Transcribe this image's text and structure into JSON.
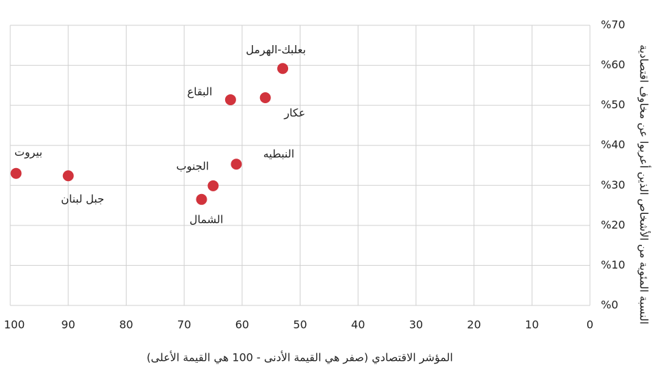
{
  "chart_data": {
    "type": "scatter",
    "x_label": "المؤشر الاقتصادي (صفر هي القيمة الأدنى - 100 هي القيمة الأعلى)",
    "y_label": "النسبة المئوية من الأشخاص الذين أعربوا عن مخاوف اقتصادية",
    "color": "#d1333c",
    "series": [
      {
        "name": null,
        "color": "#d1333c",
        "labels": [
          "بيروت",
          "جبل لبنان",
          "الشمال",
          "الجنوب",
          "النبطيه",
          "البقاع",
          "عكار",
          "بعلبك-الهرمل"
        ],
        "x": [
          99,
          90,
          67,
          65,
          61,
          62,
          56,
          53
        ],
        "values": [
          33,
          32.4,
          26.5,
          29.9,
          35.3,
          51.4,
          51.9,
          59.2
        ]
      }
    ],
    "xlim": [
      100,
      0
    ],
    "xticks": [
      100,
      90,
      80,
      70,
      60,
      50,
      40,
      30,
      20,
      10,
      0
    ],
    "ylim": [
      0,
      70
    ],
    "yticks": [
      {
        "value": 0,
        "label": "%0"
      },
      {
        "value": 10,
        "label": "%10"
      },
      {
        "value": 20,
        "label": "%20"
      },
      {
        "value": 30,
        "label": "%30"
      },
      {
        "value": 40,
        "label": "%40"
      },
      {
        "value": 50,
        "label": "%50"
      },
      {
        "value": 60,
        "label": "%60"
      },
      {
        "value": 70,
        "label": "%70"
      }
    ],
    "grid": true
  }
}
